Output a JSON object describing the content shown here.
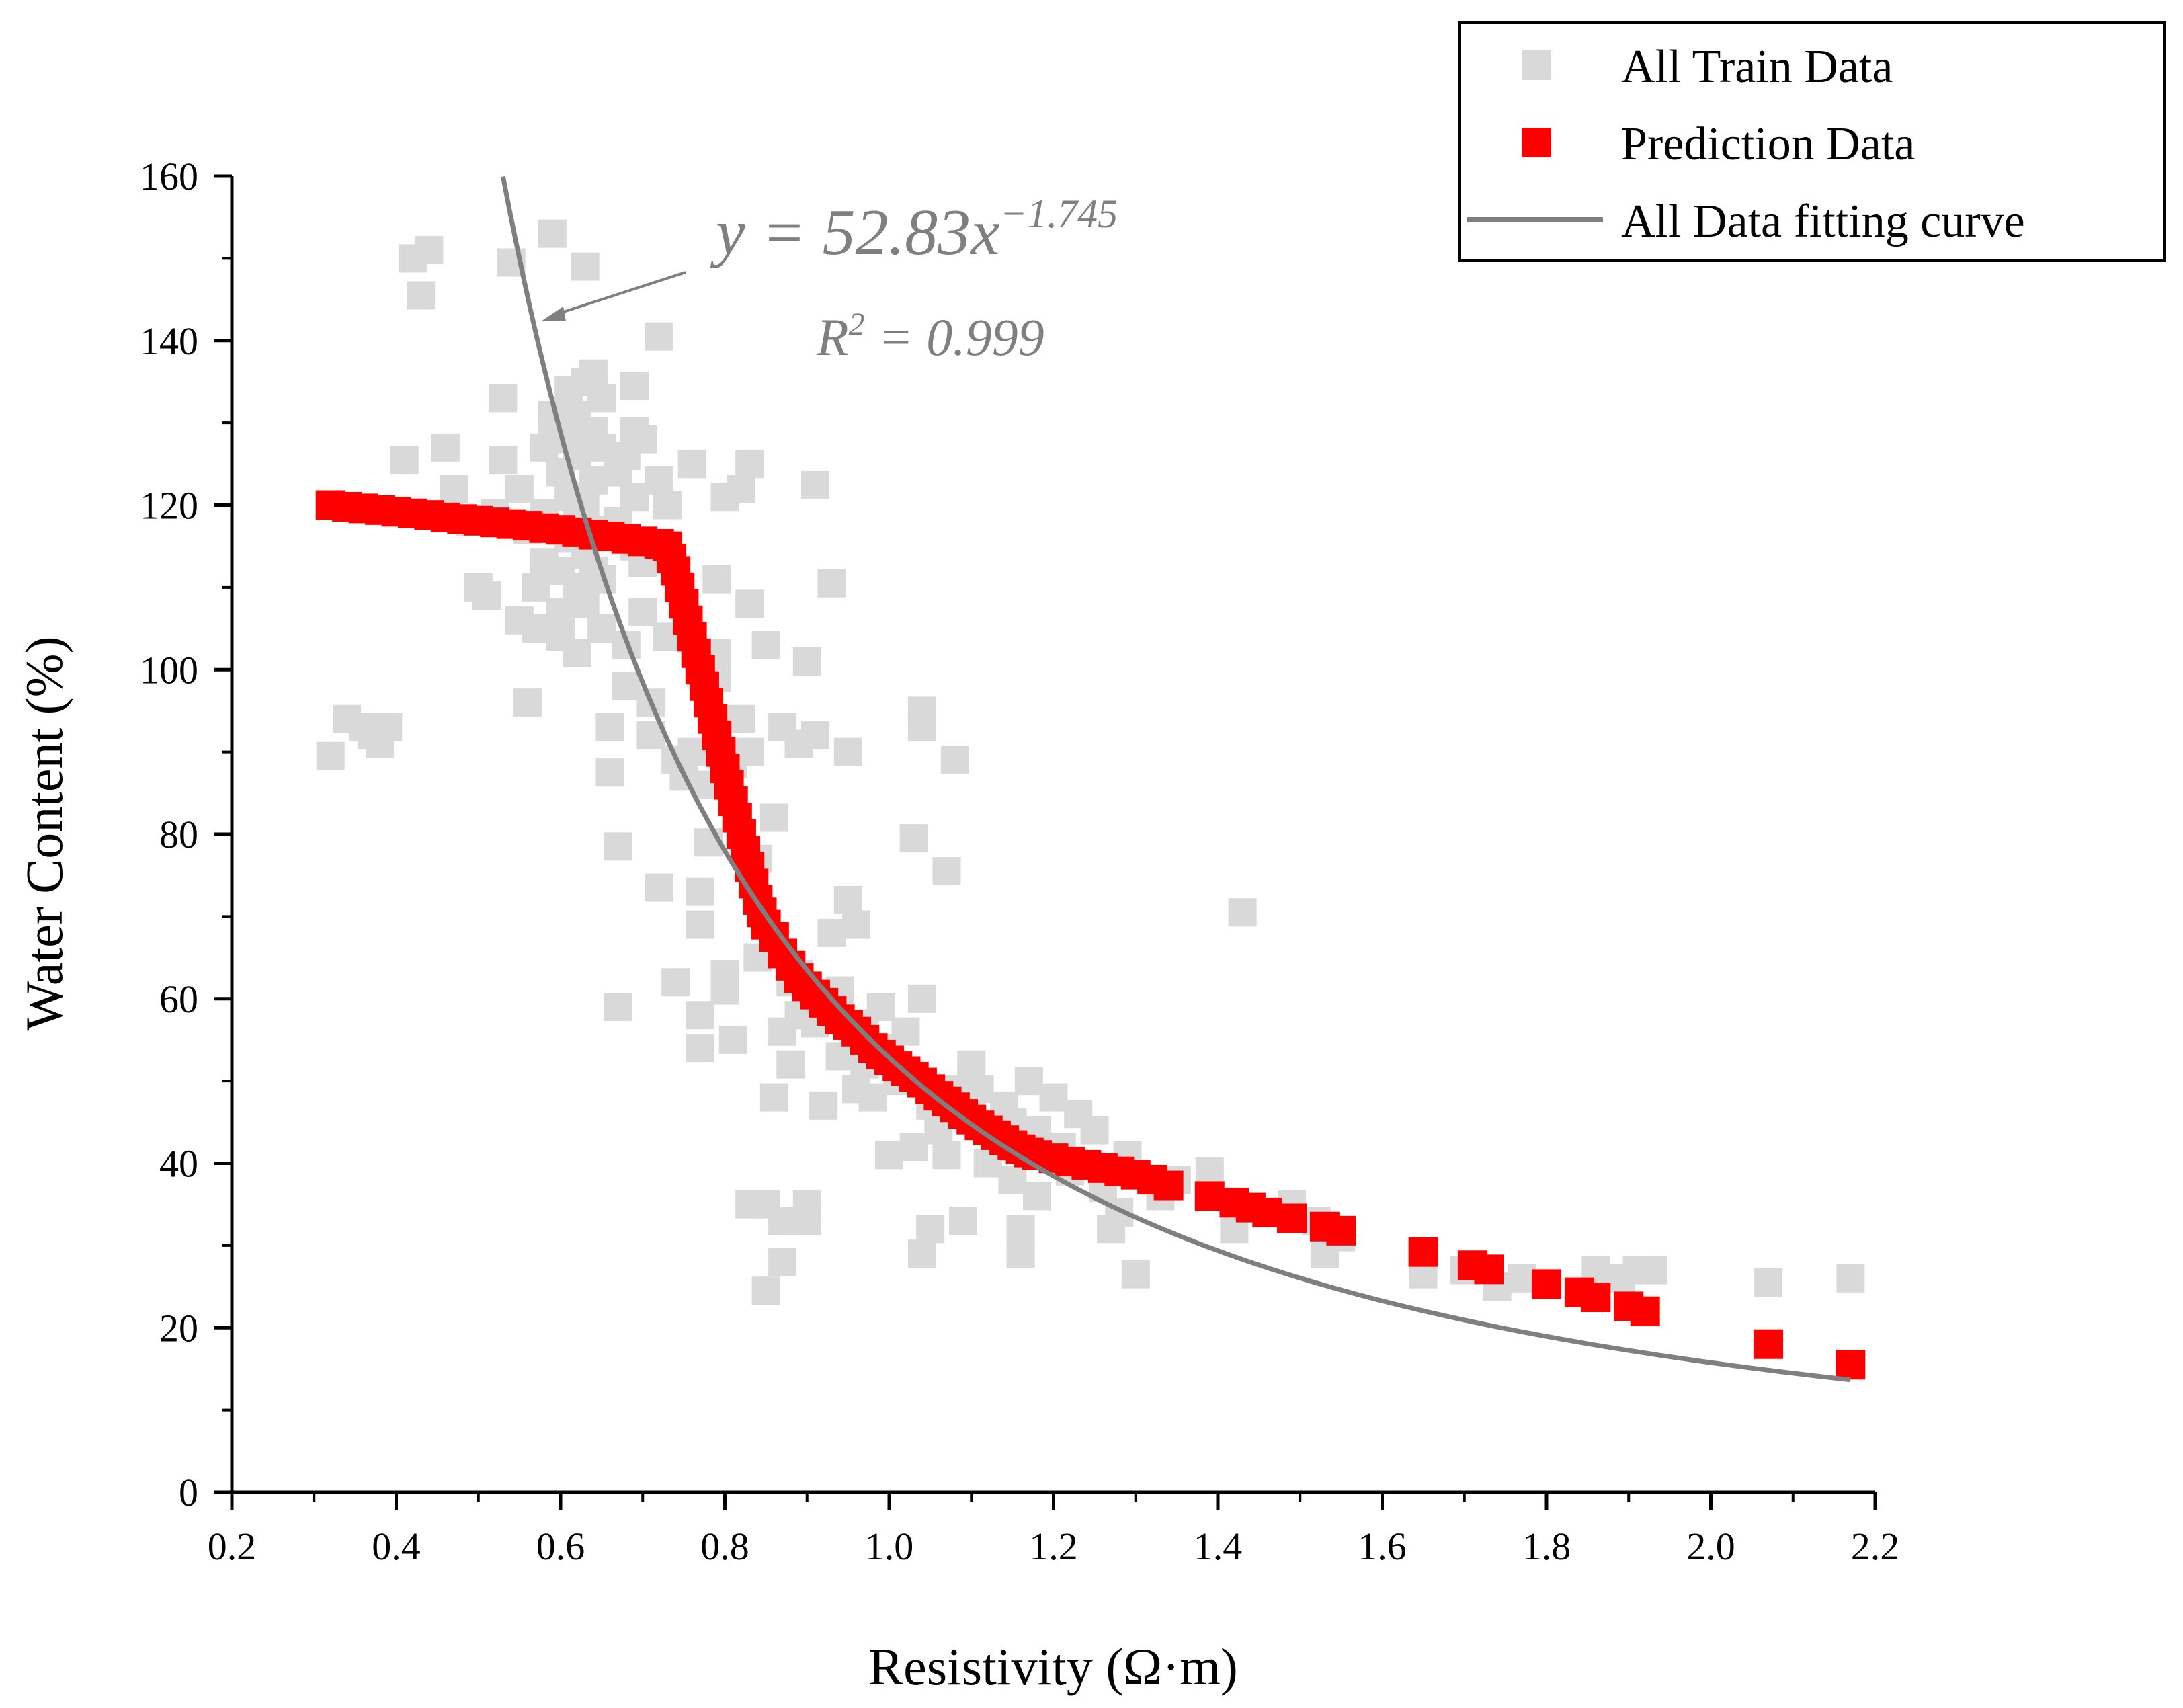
{
  "chart_data": {
    "type": "scatter",
    "xlabel": "Resistivity (Ω·m)",
    "ylabel": "Water Content (%)",
    "xlim": [
      0.2,
      2.2
    ],
    "ylim": [
      0,
      160
    ],
    "x_ticks": [
      "0.2",
      "0.4",
      "0.6",
      "0.8",
      "1.0",
      "1.2",
      "1.4",
      "1.6",
      "1.8",
      "2.0",
      "2.2"
    ],
    "y_ticks": [
      "0",
      "20",
      "40",
      "60",
      "80",
      "100",
      "120",
      "140",
      "160"
    ],
    "grid": false,
    "legend_position": "top-right",
    "annotation": {
      "equation_lhs": "y = 52.83x",
      "equation_exp": "−1.745",
      "r2_base": "R",
      "r2_exp": "2",
      "r2_rhs": " = 0.999"
    },
    "series": [
      {
        "name": "All Train Data",
        "kind": "scatter",
        "color": "#d9d9d9",
        "points": [
          [
            0.32,
            89.5
          ],
          [
            0.34,
            94
          ],
          [
            0.36,
            93
          ],
          [
            0.37,
            92
          ],
          [
            0.38,
            91
          ],
          [
            0.39,
            93
          ],
          [
            0.41,
            125.5
          ],
          [
            0.42,
            150
          ],
          [
            0.43,
            145.5
          ],
          [
            0.44,
            151
          ],
          [
            0.46,
            127
          ],
          [
            0.47,
            122
          ],
          [
            0.49,
            118
          ],
          [
            0.5,
            110
          ],
          [
            0.51,
            109
          ],
          [
            0.52,
            119
          ],
          [
            0.53,
            125.5
          ],
          [
            0.53,
            133
          ],
          [
            0.54,
            149.5
          ],
          [
            0.55,
            122
          ],
          [
            0.55,
            106
          ],
          [
            0.56,
            96
          ],
          [
            0.56,
            117
          ],
          [
            0.57,
            110
          ],
          [
            0.57,
            105
          ],
          [
            0.58,
            127
          ],
          [
            0.58,
            119
          ],
          [
            0.58,
            113
          ],
          [
            0.59,
            153
          ],
          [
            0.59,
            131
          ],
          [
            0.59,
            129
          ],
          [
            0.6,
            124
          ],
          [
            0.6,
            117
          ],
          [
            0.6,
            112
          ],
          [
            0.6,
            107
          ],
          [
            0.6,
            104
          ],
          [
            0.61,
            134
          ],
          [
            0.61,
            128
          ],
          [
            0.61,
            121
          ],
          [
            0.61,
            116
          ],
          [
            0.62,
            131
          ],
          [
            0.62,
            126
          ],
          [
            0.62,
            118
          ],
          [
            0.62,
            110
          ],
          [
            0.62,
            102
          ],
          [
            0.63,
            149
          ],
          [
            0.63,
            135
          ],
          [
            0.63,
            120
          ],
          [
            0.63,
            114
          ],
          [
            0.63,
            108
          ],
          [
            0.64,
            136
          ],
          [
            0.64,
            129
          ],
          [
            0.64,
            123
          ],
          [
            0.64,
            117
          ],
          [
            0.64,
            112
          ],
          [
            0.65,
            133
          ],
          [
            0.65,
            127
          ],
          [
            0.65,
            111
          ],
          [
            0.65,
            105
          ],
          [
            0.66,
            93
          ],
          [
            0.66,
            87.5
          ],
          [
            0.67,
            78.5
          ],
          [
            0.67,
            59
          ],
          [
            0.67,
            124
          ],
          [
            0.67,
            118
          ],
          [
            0.68,
            126
          ],
          [
            0.68,
            103
          ],
          [
            0.68,
            98
          ],
          [
            0.69,
            134.5
          ],
          [
            0.69,
            129
          ],
          [
            0.69,
            121
          ],
          [
            0.69,
            115
          ],
          [
            0.7,
            128
          ],
          [
            0.7,
            113
          ],
          [
            0.7,
            107
          ],
          [
            0.71,
            96
          ],
          [
            0.71,
            92
          ],
          [
            0.72,
            140.5
          ],
          [
            0.72,
            73.5
          ],
          [
            0.72,
            123
          ],
          [
            0.73,
            120
          ],
          [
            0.73,
            104
          ],
          [
            0.74,
            62
          ],
          [
            0.74,
            89
          ],
          [
            0.75,
            87
          ],
          [
            0.76,
            125
          ],
          [
            0.76,
            90
          ],
          [
            0.77,
            73
          ],
          [
            0.77,
            69
          ],
          [
            0.77,
            58
          ],
          [
            0.77,
            54
          ],
          [
            0.78,
            86
          ],
          [
            0.78,
            79
          ],
          [
            0.79,
            111
          ],
          [
            0.79,
            102
          ],
          [
            0.79,
            99
          ],
          [
            0.8,
            121
          ],
          [
            0.8,
            63
          ],
          [
            0.8,
            61
          ],
          [
            0.81,
            88.5
          ],
          [
            0.81,
            55
          ],
          [
            0.82,
            122
          ],
          [
            0.82,
            94
          ],
          [
            0.83,
            125
          ],
          [
            0.83,
            108
          ],
          [
            0.83,
            90
          ],
          [
            0.83,
            35
          ],
          [
            0.84,
            77
          ],
          [
            0.84,
            65
          ],
          [
            0.85,
            103
          ],
          [
            0.85,
            35
          ],
          [
            0.85,
            24.5
          ],
          [
            0.86,
            82
          ],
          [
            0.86,
            48
          ],
          [
            0.87,
            93
          ],
          [
            0.87,
            56
          ],
          [
            0.87,
            33
          ],
          [
            0.87,
            28
          ],
          [
            0.88,
            62
          ],
          [
            0.88,
            52
          ],
          [
            0.89,
            91
          ],
          [
            0.89,
            63
          ],
          [
            0.89,
            58
          ],
          [
            0.9,
            101
          ],
          [
            0.9,
            35
          ],
          [
            0.9,
            33
          ],
          [
            0.91,
            122.5
          ],
          [
            0.91,
            92
          ],
          [
            0.91,
            57
          ],
          [
            0.92,
            47
          ],
          [
            0.93,
            110.5
          ],
          [
            0.93,
            68
          ],
          [
            0.94,
            61
          ],
          [
            0.94,
            53
          ],
          [
            0.95,
            90
          ],
          [
            0.95,
            72
          ],
          [
            0.96,
            69
          ],
          [
            0.96,
            49
          ],
          [
            0.97,
            57
          ],
          [
            0.97,
            52
          ],
          [
            0.98,
            48
          ],
          [
            0.99,
            59
          ],
          [
            1.0,
            54
          ],
          [
            1.0,
            41
          ],
          [
            1.01,
            50
          ],
          [
            1.02,
            56
          ],
          [
            1.03,
            42
          ],
          [
            1.03,
            79.5
          ],
          [
            1.04,
            60
          ],
          [
            1.04,
            95
          ],
          [
            1.04,
            93
          ],
          [
            1.04,
            29
          ],
          [
            1.05,
            32
          ],
          [
            1.05,
            47
          ],
          [
            1.06,
            44
          ],
          [
            1.07,
            75.5
          ],
          [
            1.07,
            41
          ],
          [
            1.08,
            89
          ],
          [
            1.08,
            49
          ],
          [
            1.09,
            33
          ],
          [
            1.1,
            46
          ],
          [
            1.1,
            52
          ],
          [
            1.11,
            49
          ],
          [
            1.12,
            40
          ],
          [
            1.13,
            42
          ],
          [
            1.14,
            47
          ],
          [
            1.15,
            45
          ],
          [
            1.15,
            38
          ],
          [
            1.16,
            32
          ],
          [
            1.16,
            29
          ],
          [
            1.17,
            50
          ],
          [
            1.18,
            44
          ],
          [
            1.18,
            36
          ],
          [
            1.2,
            48
          ],
          [
            1.21,
            42
          ],
          [
            1.22,
            39
          ],
          [
            1.23,
            46
          ],
          [
            1.25,
            44
          ],
          [
            1.26,
            37
          ],
          [
            1.27,
            32
          ],
          [
            1.28,
            34
          ],
          [
            1.29,
            41
          ],
          [
            1.3,
            26.5
          ],
          [
            1.33,
            36
          ],
          [
            1.35,
            38
          ],
          [
            1.39,
            39
          ],
          [
            1.42,
            32
          ],
          [
            1.43,
            70.5
          ],
          [
            1.49,
            35
          ],
          [
            1.52,
            33
          ],
          [
            1.53,
            29
          ],
          [
            1.55,
            31
          ],
          [
            1.65,
            28
          ],
          [
            1.65,
            26.5
          ],
          [
            1.7,
            27
          ],
          [
            1.74,
            25
          ],
          [
            1.77,
            26
          ],
          [
            1.86,
            27
          ],
          [
            1.89,
            26
          ],
          [
            1.91,
            27
          ],
          [
            1.93,
            27
          ],
          [
            2.07,
            25.5
          ],
          [
            2.17,
            26
          ]
        ]
      },
      {
        "name": "Prediction Data",
        "kind": "scatter",
        "color": "#ff0000",
        "points": [
          [
            0.32,
            120
          ],
          [
            0.34,
            119.8
          ],
          [
            0.36,
            119.6
          ],
          [
            0.38,
            119.4
          ],
          [
            0.4,
            119.2
          ],
          [
            0.42,
            119
          ],
          [
            0.44,
            118.8
          ],
          [
            0.46,
            118.5
          ],
          [
            0.48,
            118.3
          ],
          [
            0.5,
            118.1
          ],
          [
            0.52,
            117.9
          ],
          [
            0.54,
            117.7
          ],
          [
            0.56,
            117.5
          ],
          [
            0.58,
            117.2
          ],
          [
            0.6,
            117
          ],
          [
            0.62,
            116.7
          ],
          [
            0.64,
            116.4
          ],
          [
            0.66,
            116.2
          ],
          [
            0.68,
            115.9
          ],
          [
            0.7,
            115.6
          ],
          [
            0.72,
            115.3
          ],
          [
            0.73,
            115
          ],
          [
            0.735,
            113.5
          ],
          [
            0.74,
            112
          ],
          [
            0.745,
            110
          ],
          [
            0.75,
            108
          ],
          [
            0.755,
            106
          ],
          [
            0.76,
            104
          ],
          [
            0.765,
            102
          ],
          [
            0.77,
            100
          ],
          [
            0.775,
            98
          ],
          [
            0.78,
            96
          ],
          [
            0.785,
            94
          ],
          [
            0.79,
            92
          ],
          [
            0.795,
            90
          ],
          [
            0.8,
            88
          ],
          [
            0.805,
            86
          ],
          [
            0.81,
            84
          ],
          [
            0.815,
            82
          ],
          [
            0.82,
            80
          ],
          [
            0.825,
            78
          ],
          [
            0.83,
            76
          ],
          [
            0.835,
            74
          ],
          [
            0.84,
            72
          ],
          [
            0.845,
            70.5
          ],
          [
            0.85,
            69
          ],
          [
            0.86,
            67.5
          ],
          [
            0.87,
            65.5
          ],
          [
            0.88,
            64
          ],
          [
            0.89,
            62.5
          ],
          [
            0.9,
            61.5
          ],
          [
            0.91,
            60.5
          ],
          [
            0.92,
            59.5
          ],
          [
            0.93,
            58.5
          ],
          [
            0.94,
            57.5
          ],
          [
            0.95,
            56.8
          ],
          [
            0.96,
            56
          ],
          [
            0.97,
            55
          ],
          [
            0.98,
            54
          ],
          [
            0.99,
            53.2
          ],
          [
            1.0,
            52.5
          ],
          [
            1.01,
            51.8
          ],
          [
            1.02,
            51.2
          ],
          [
            1.03,
            50.5
          ],
          [
            1.04,
            49.8
          ],
          [
            1.05,
            49
          ],
          [
            1.06,
            48.2
          ],
          [
            1.07,
            47.5
          ],
          [
            1.08,
            46.8
          ],
          [
            1.09,
            46
          ],
          [
            1.1,
            45.3
          ],
          [
            1.11,
            44.6
          ],
          [
            1.12,
            44
          ],
          [
            1.13,
            43.4
          ],
          [
            1.14,
            42.8
          ],
          [
            1.15,
            42.2
          ],
          [
            1.16,
            41.7
          ],
          [
            1.17,
            41.3
          ],
          [
            1.18,
            41
          ],
          [
            1.2,
            40.6
          ],
          [
            1.22,
            40.2
          ],
          [
            1.24,
            39.8
          ],
          [
            1.26,
            39.4
          ],
          [
            1.28,
            39
          ],
          [
            1.3,
            38.6
          ],
          [
            1.32,
            38
          ],
          [
            1.34,
            37.3
          ],
          [
            1.39,
            36
          ],
          [
            1.42,
            35.2
          ],
          [
            1.44,
            34.6
          ],
          [
            1.46,
            34
          ],
          [
            1.49,
            33.3
          ],
          [
            1.53,
            32.3
          ],
          [
            1.55,
            31.8
          ],
          [
            1.65,
            29.2
          ],
          [
            1.71,
            27.6
          ],
          [
            1.73,
            27.1
          ],
          [
            1.8,
            25.3
          ],
          [
            1.84,
            24.3
          ],
          [
            1.86,
            23.7
          ],
          [
            1.9,
            22.6
          ],
          [
            1.92,
            22
          ],
          [
            2.07,
            18
          ],
          [
            2.17,
            15.5
          ]
        ]
      },
      {
        "name": "All Data fitting curve",
        "kind": "line",
        "color": "#7f7f7f",
        "x_range": [
          0.53,
          2.17
        ],
        "a": 52.83,
        "b": -1.745
      }
    ]
  }
}
